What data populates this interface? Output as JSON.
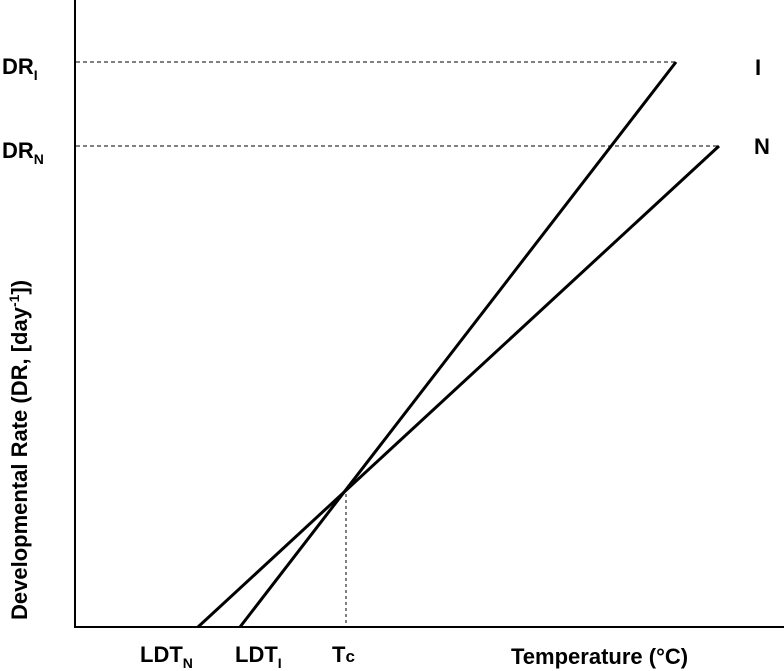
{
  "axes": {
    "y_title": "Developmental Rate (DR, [day",
    "y_title_sup": "-1",
    "y_title_end": "])",
    "x_title": "Temperature (°C)"
  },
  "y_ticks": {
    "dr_i": {
      "main": "DR",
      "sub": "I"
    },
    "dr_n": {
      "main": "DR",
      "sub": "N"
    }
  },
  "x_ticks": {
    "ldt_n": {
      "main": "LDT",
      "sub": "N"
    },
    "ldt_i": {
      "main": "LDT",
      "sub": "I"
    },
    "tc": {
      "main": "T",
      "sub": "c"
    }
  },
  "lines": {
    "i_label": "I",
    "n_label": "N"
  }
}
